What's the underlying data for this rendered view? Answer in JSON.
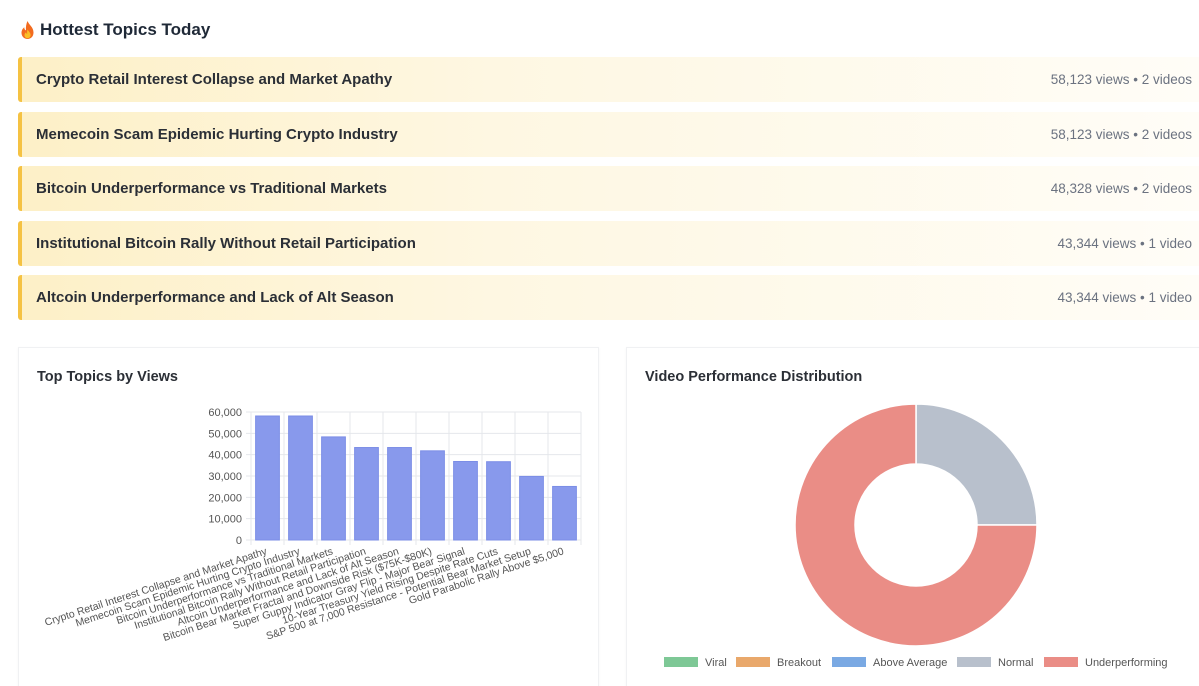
{
  "section": {
    "title": "Hottest Topics Today",
    "icon": "fire-icon"
  },
  "topics": [
    {
      "title": "Crypto Retail Interest Collapse and Market Apathy",
      "meta": "58,123 views • 2 videos"
    },
    {
      "title": "Memecoin Scam Epidemic Hurting Crypto Industry",
      "meta": "58,123 views • 2 videos"
    },
    {
      "title": "Bitcoin Underperformance vs Traditional Markets",
      "meta": "48,328 views • 2 videos"
    },
    {
      "title": "Institutional Bitcoin Rally Without Retail Participation",
      "meta": "43,344 views • 1 video"
    },
    {
      "title": "Altcoin Underperformance and Lack of Alt Season",
      "meta": "43,344 views • 1 video"
    }
  ],
  "colors": {
    "accent": "#f5c243",
    "bar": "#8899ec",
    "viral": "#7ec896",
    "breakout": "#e9a86b",
    "above_average": "#7aa9e3",
    "normal": "#b8c0cc",
    "underperforming": "#ea8d86"
  },
  "chart_data": [
    {
      "type": "bar",
      "title": "Top Topics by Views",
      "xlabel": "",
      "ylabel": "",
      "ylim": [
        0,
        60000
      ],
      "yticks": [
        "60,000",
        "50,000",
        "40,000",
        "30,000",
        "20,000",
        "10,000",
        "0"
      ],
      "categories": [
        "Crypto Retail Interest Collapse and Market Apathy",
        "Memecoin Scam Epidemic Hurting Crypto Industry",
        "Bitcoin Underperformance vs Traditional Markets",
        "Institutional Bitcoin Rally Without Retail Participation",
        "Altcoin Underperformance and Lack of Alt Season",
        "Bitcoin Bear Market Fractal and Downside Risk ($75K-$80K)",
        "Super Guppy Indicator Gray Flip - Major Bear Signal",
        "10-Year Treasury Yield Rising Despite Rate Cuts",
        "S&P 500 at 7,000 Resistance - Potential Bear Market Setup",
        "Gold Parabolic Rally Above $5,000"
      ],
      "values": [
        58123,
        58123,
        48328,
        43344,
        43344,
        41800,
        36800,
        36700,
        29800,
        25100
      ],
      "grid": true
    },
    {
      "type": "pie",
      "title": "Video Performance Distribution",
      "donut": true,
      "legend_position": "bottom",
      "labels": [
        "Viral",
        "Breakout",
        "Above Average",
        "Normal",
        "Underperforming"
      ],
      "values": [
        0,
        0,
        0,
        1,
        3
      ]
    }
  ]
}
